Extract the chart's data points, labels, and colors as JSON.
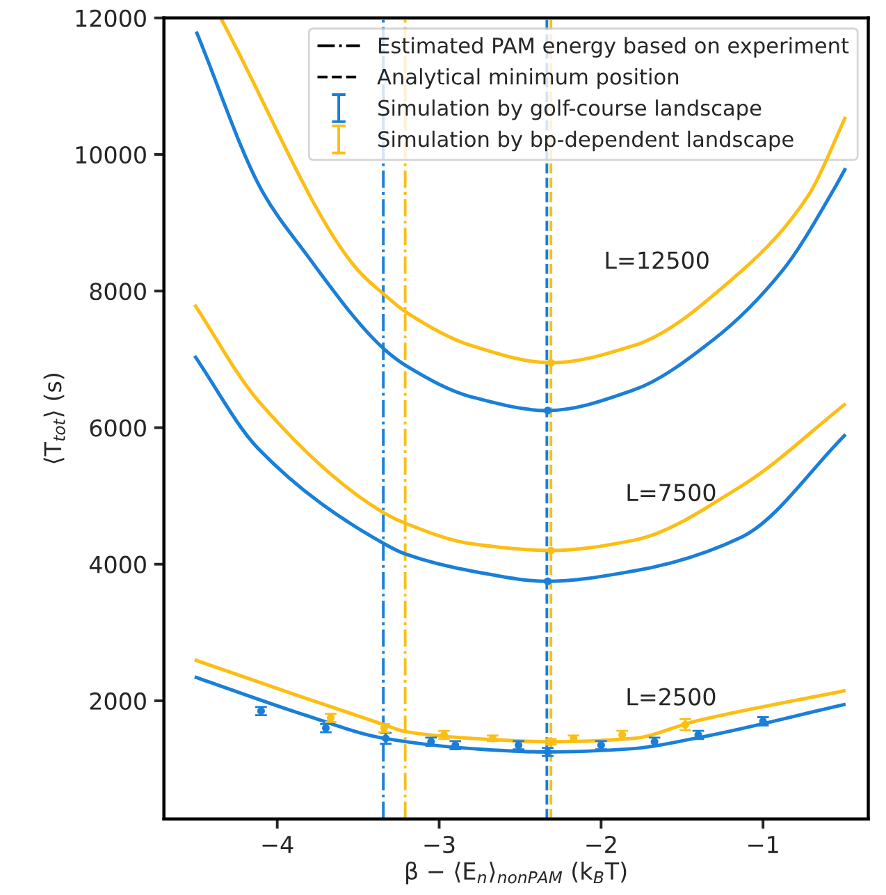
{
  "chart_data": {
    "type": "line",
    "xlabel": "β − ⟨E$_{n}$⟩$_{nonPAM}$ (k$_{B}$T)",
    "ylabel": "⟨T$_{tot}$⟩ (s)",
    "xlim": [
      -4.7,
      -0.35
    ],
    "xticks": [
      {
        "value": -4,
        "label": "−4"
      },
      {
        "value": -3,
        "label": "−3"
      },
      {
        "value": -2,
        "label": "−2"
      },
      {
        "value": -1,
        "label": "−1"
      }
    ],
    "ylim": [
      270,
      12000
    ],
    "yticks": [
      2000,
      4000,
      6000,
      8000,
      10000,
      12000
    ],
    "grid": false,
    "legend": "top right",
    "series": [
      {
        "color": "#1a7fd8",
        "x": [
          -4.5,
          -4.09,
          -3.84,
          -3.34,
          -3.2,
          -2.8,
          -2.33,
          -1.8,
          -1.3,
          -0.88,
          -0.56,
          -0.49
        ],
        "values": [
          11800,
          9450,
          8600,
          7150,
          6900,
          6450,
          6250,
          6550,
          7300,
          8300,
          9500,
          9800
        ]
      },
      {
        "color": "#fdbe14",
        "x": [
          -4.35,
          -3.5,
          -3.34,
          -3.21,
          -2.8,
          -2.31,
          -1.8,
          -1.13,
          -0.72,
          -0.49
        ],
        "values": [
          12000,
          8300,
          7950,
          7700,
          7200,
          6950,
          7200,
          8300,
          9400,
          10550
        ]
      },
      {
        "color": "#1a7fd8",
        "x": [
          -4.51,
          -4.12,
          -3.34,
          -3.21,
          -2.8,
          -2.33,
          -1.8,
          -1.13,
          -0.49
        ],
        "values": [
          7050,
          5700,
          4300,
          4150,
          3900,
          3750,
          3900,
          4400,
          5900
        ]
      },
      {
        "color": "#fdbe14",
        "x": [
          -4.51,
          -4.12,
          -3.34,
          -3.21,
          -2.8,
          -2.31,
          -1.8,
          -1.13,
          -0.49
        ],
        "values": [
          7800,
          6400,
          4750,
          4600,
          4300,
          4200,
          4350,
          5150,
          6350
        ]
      },
      {
        "color": "#1a7fd8",
        "x": [
          -4.51,
          -3.84,
          -3.34,
          -2.8,
          -2.33,
          -1.8,
          -1.42,
          -0.49
        ],
        "values": [
          2350,
          1800,
          1450,
          1300,
          1250,
          1300,
          1450,
          1950
        ]
      },
      {
        "color": "#fdbe14",
        "x": [
          -4.51,
          -3.84,
          -3.34,
          -3.21,
          -2.8,
          -2.31,
          -1.8,
          -1.42,
          -0.49
        ],
        "values": [
          2600,
          2050,
          1650,
          1550,
          1450,
          1400,
          1450,
          1700,
          2150
        ]
      },
      {
        "type": "scatter",
        "name": "Simulation by golf-course landscape",
        "color": "#1a7fd8",
        "marker": "circle",
        "x": [
          -4.1,
          -3.7,
          -3.33,
          -3.05,
          -2.9,
          -2.51,
          -2.33,
          -2.0,
          -1.67,
          -1.4,
          -1.0,
          -2.33,
          -2.33
        ],
        "values": [
          1850,
          1600,
          1450,
          1400,
          1350,
          1350,
          1250,
          1350,
          1400,
          1500,
          1700,
          3750,
          6250
        ],
        "errors": [
          60,
          60,
          80,
          60,
          60,
          60,
          60,
          60,
          60,
          60,
          60,
          null,
          null
        ]
      },
      {
        "type": "scatter",
        "name": "Simulation by bp-dependent landscape",
        "color": "#fdbe14",
        "marker": "circle",
        "x": [
          -3.67,
          -3.34,
          -2.97,
          -2.67,
          -2.31,
          -2.17,
          -1.87,
          -1.48,
          -2.31,
          -2.31
        ],
        "values": [
          1750,
          1600,
          1500,
          1450,
          1400,
          1450,
          1500,
          1650,
          4200,
          6950
        ],
        "errors": [
          60,
          60,
          60,
          40,
          40,
          40,
          60,
          80,
          null,
          null
        ]
      }
    ],
    "ref_lines": [
      {
        "axis": "x",
        "value": -3.345,
        "color": "#1a7fd8",
        "line_style": "dashdot",
        "label": "Estimated PAM energy based on experiment"
      },
      {
        "axis": "x",
        "value": -3.21,
        "color": "#fdbe14",
        "line_style": "dashdot",
        "label": null
      },
      {
        "axis": "x",
        "value": -2.335,
        "color": "#1a7fd8",
        "line_style": "dashed",
        "label": "Analytical minimum position"
      },
      {
        "axis": "x",
        "value": -2.31,
        "color": "#fdbe14",
        "line_style": "dashed",
        "label": null
      }
    ],
    "annotations": [
      "L=12500",
      "L=7500",
      "L=2500"
    ]
  }
}
